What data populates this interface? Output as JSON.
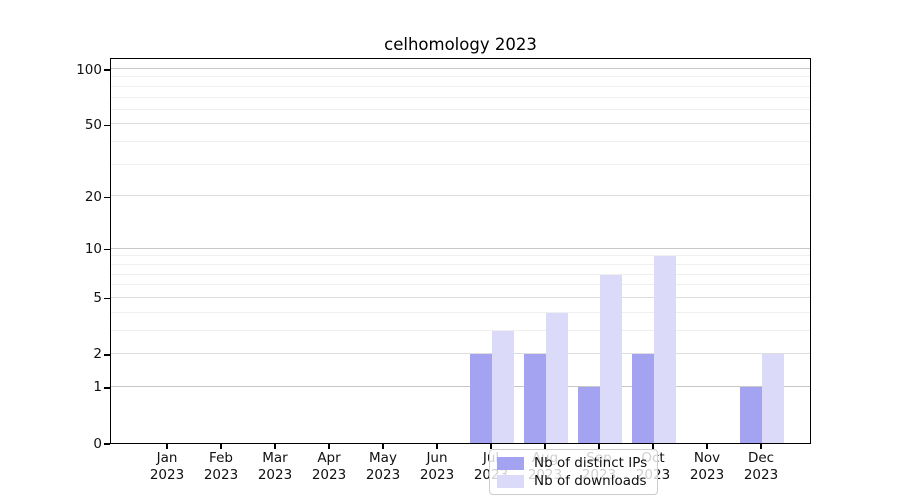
{
  "title": "celhomology 2023",
  "chart_data": {
    "type": "bar",
    "title": "celhomology 2023",
    "categories": [
      "Jan 2023",
      "Feb 2023",
      "Mar 2023",
      "Apr 2023",
      "May 2023",
      "Jun 2023",
      "Jul 2023",
      "Aug 2023",
      "Sep 2023",
      "Oct 2023",
      "Nov 2023",
      "Dec 2023"
    ],
    "x": {
      "months": [
        "Jan",
        "Feb",
        "Mar",
        "Apr",
        "May",
        "Jun",
        "Jul",
        "Aug",
        "Sep",
        "Oct",
        "Nov",
        "Dec"
      ],
      "year_label": "2023"
    },
    "series": [
      {
        "name": "Nb of distinct IPs",
        "color": "#a3a3f1",
        "values": [
          0,
          0,
          0,
          0,
          0,
          0,
          2,
          2,
          1,
          2,
          0,
          1
        ]
      },
      {
        "name": "Nb of downloads",
        "color": "#dbdbf9",
        "values": [
          0,
          0,
          0,
          0,
          0,
          0,
          3,
          4,
          7,
          9,
          0,
          2
        ]
      }
    ],
    "yscale": "log1p",
    "ylim": [
      0,
      100
    ],
    "ytick_values": [
      0,
      1,
      2,
      5,
      10,
      20,
      50,
      100
    ],
    "ytick_labels": [
      "0",
      "1",
      "2",
      "5",
      "10",
      "20",
      "50",
      "100"
    ],
    "decade_gridlines": [
      1,
      10,
      100
    ],
    "mid_gridlines": [
      2,
      5,
      20,
      50
    ],
    "minor_gridlines": [
      3,
      4,
      6,
      7,
      8,
      9,
      30,
      40,
      60,
      70,
      80,
      90
    ],
    "grid": "on",
    "legend_position": "bottom-center",
    "colors": {
      "spine": "#000000",
      "grid_decade": "#c8c8c8",
      "grid_mid": "#dddddd",
      "grid_minor": "#efefef",
      "text": "#111111"
    }
  }
}
